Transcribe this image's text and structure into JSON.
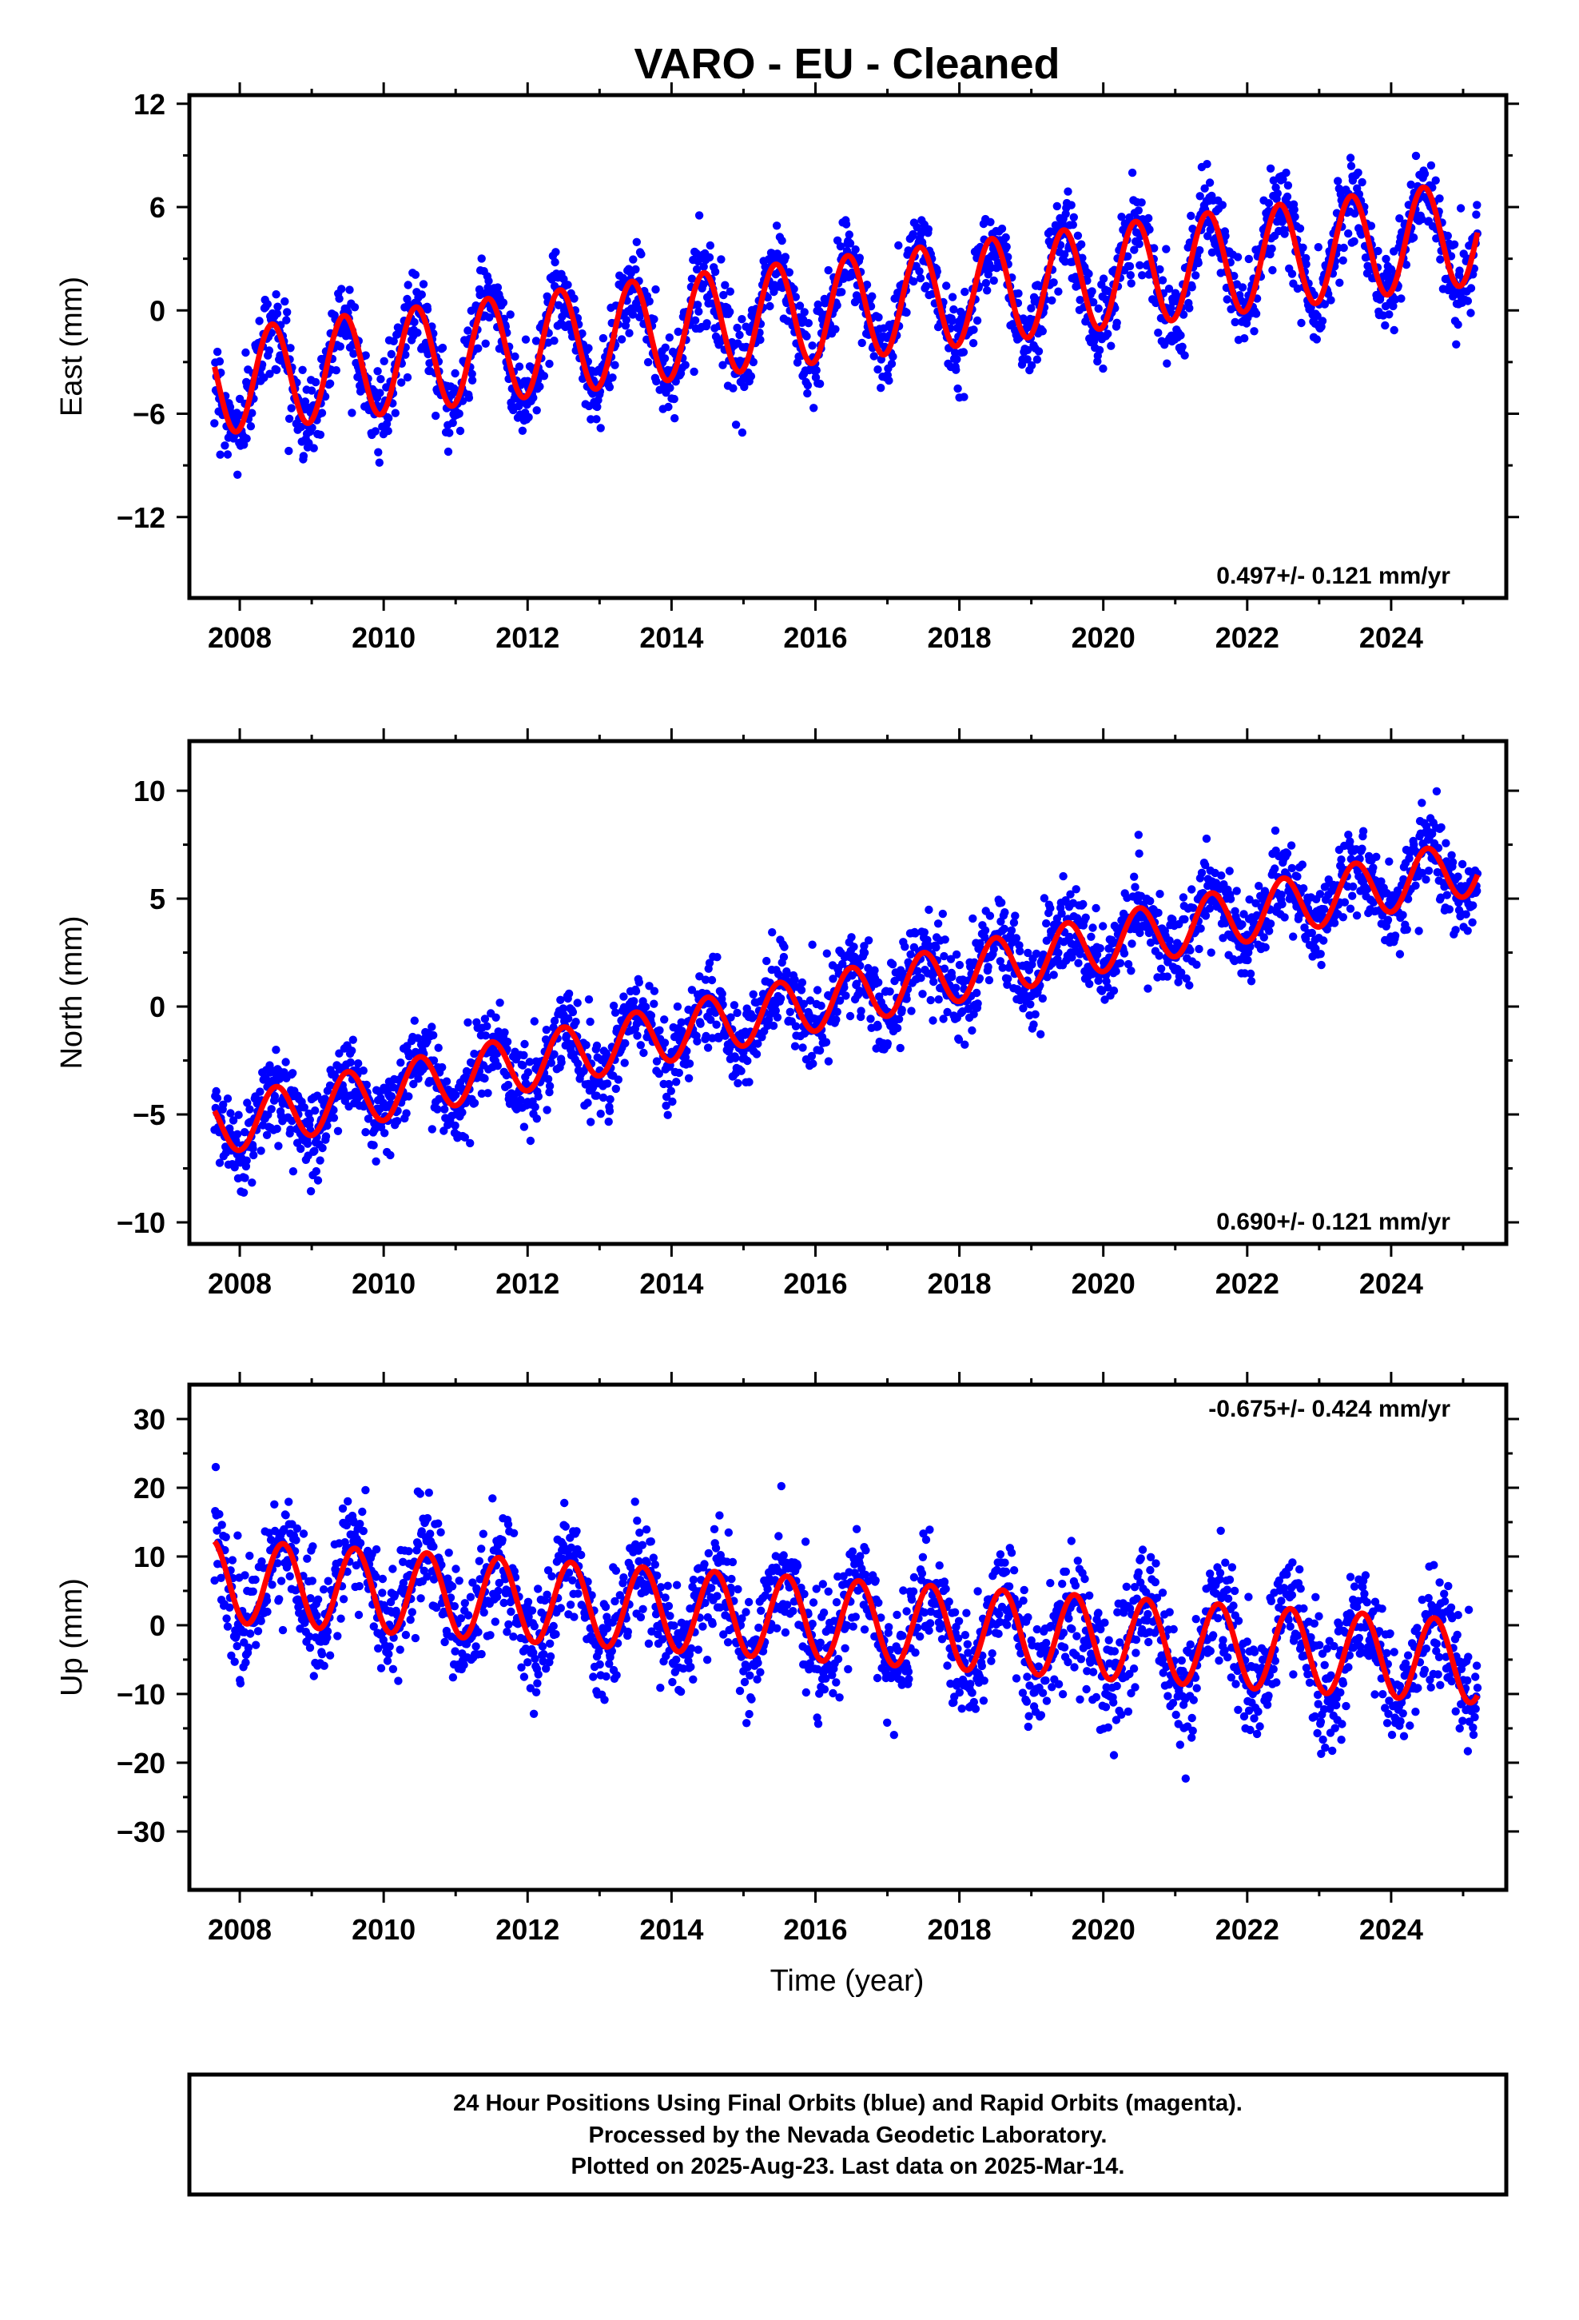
{
  "title": "VARO  - EU - Cleaned",
  "xlabel": "Time (year)",
  "footer": {
    "line1": "24 Hour Positions Using Final Orbits (blue) and Rapid Orbits (magenta).",
    "line2": "Processed by the Nevada Geodetic Laboratory.",
    "line3": "Plotted on 2025-Aug-23. Last data on 2025-Mar-14."
  },
  "colors": {
    "points": "#0000ff",
    "model": "#ff0000",
    "frame": "#000000"
  },
  "chart_data": [
    {
      "type": "scatter",
      "ylabel": "East (mm)",
      "rate_label": "0.497+/- 0.121 mm/yr",
      "rate_position": "bottom-right",
      "xlim": [
        2007.3,
        2025.6
      ],
      "ylim": [
        -16.7,
        12.5
      ],
      "yticks": [
        12,
        6,
        0,
        -6,
        -12
      ],
      "ytick_labels": [
        "12",
        "6",
        "0",
        "−6",
        "−12"
      ],
      "xticks": [
        2008,
        2010,
        2012,
        2014,
        2016,
        2018,
        2020,
        2022,
        2024
      ],
      "xtick_labels": [
        "2008",
        "2010",
        "2012",
        "2014",
        "2016",
        "2018",
        "2020",
        "2022",
        "2024"
      ],
      "data_range": [
        2007.65,
        2025.2
      ],
      "trend": {
        "start": -4.2,
        "rate": 0.497
      },
      "annual_amplitude": 3.0,
      "annual_peak_phase": 0.45,
      "noise_sd": 1.2,
      "series": [
        {
          "name": "Final Orbits",
          "role": "daily-positions"
        },
        {
          "role": "model"
        }
      ]
    },
    {
      "type": "scatter",
      "ylabel": "North (mm)",
      "rate_label": "0.690+/- 0.121 mm/yr",
      "rate_position": "bottom-right",
      "xlim": [
        2007.3,
        2025.6
      ],
      "ylim": [
        -11.0,
        12.3
      ],
      "yticks": [
        10,
        5,
        0,
        -5,
        -10
      ],
      "ytick_labels": [
        "10",
        "5",
        "0",
        "−5",
        "−10"
      ],
      "xticks": [
        2008,
        2010,
        2012,
        2014,
        2016,
        2018,
        2020,
        2022,
        2024
      ],
      "xtick_labels": [
        "2008",
        "2010",
        "2012",
        "2014",
        "2016",
        "2018",
        "2020",
        "2022",
        "2024"
      ],
      "data_range": [
        2007.65,
        2025.2
      ],
      "trend": {
        "start": -5.6,
        "rate": 0.69
      },
      "annual_amplitude": 1.3,
      "annual_peak_phase": 0.5,
      "noise_sd": 1.0,
      "series": [
        {
          "name": "Final Orbits",
          "role": "daily-positions"
        },
        {
          "role": "model"
        }
      ]
    },
    {
      "type": "scatter",
      "ylabel": "Up (mm)",
      "rate_label": "-0.675+/- 0.424 mm/yr",
      "rate_position": "top-right",
      "xlim": [
        2007.3,
        2025.6
      ],
      "ylim": [
        -38.5,
        35.0
      ],
      "yticks": [
        30,
        20,
        10,
        0,
        -10,
        -20,
        -30
      ],
      "ytick_labels": [
        "30",
        "20",
        "10",
        "0",
        "−10",
        "−20",
        "−30"
      ],
      "xticks": [
        2008,
        2010,
        2012,
        2014,
        2016,
        2018,
        2020,
        2022,
        2024
      ],
      "xtick_labels": [
        "2008",
        "2010",
        "2012",
        "2014",
        "2016",
        "2018",
        "2020",
        "2022",
        "2024"
      ],
      "data_range": [
        2007.65,
        2025.2
      ],
      "trend": {
        "start": 6.5,
        "rate": -0.675
      },
      "annual_amplitude": 6.0,
      "annual_peak_phase": 0.6,
      "noise_sd": 4.0,
      "series": [
        {
          "name": "Final Orbits",
          "role": "daily-positions"
        },
        {
          "role": "model"
        }
      ]
    }
  ]
}
